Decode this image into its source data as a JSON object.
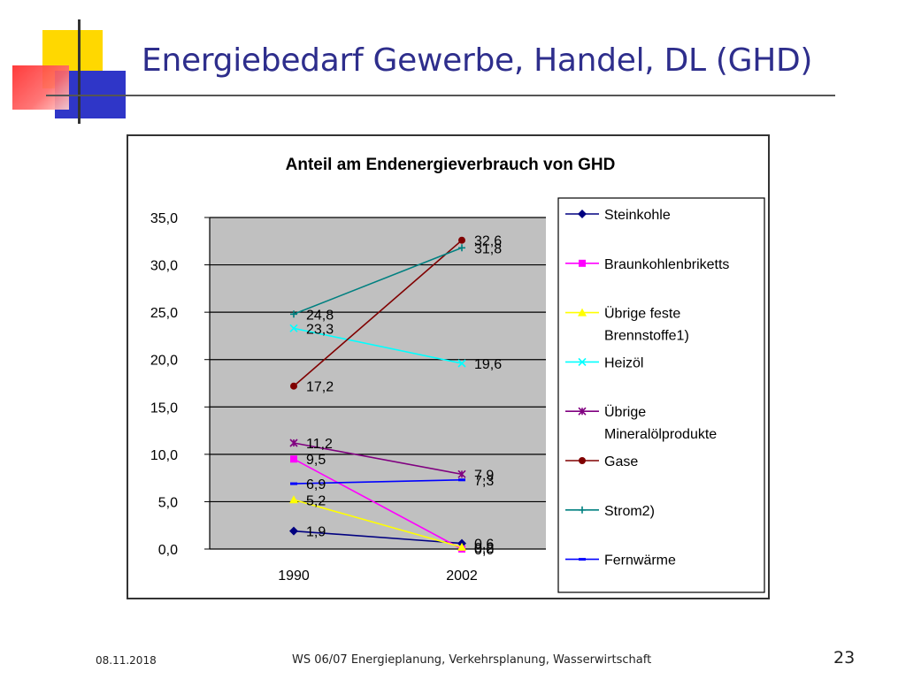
{
  "slide": {
    "title": "Energiebedarf Gewerbe, Handel, DL (GHD)",
    "footer_date": "08.11.2018",
    "footer_text": "WS 06/07 Energieplanung, Verkehrsplanung, Wasserwirtschaft",
    "page_number": "23"
  },
  "chart_data": {
    "type": "line",
    "title": "Anteil am Endenergieverbrauch von GHD",
    "xlabel": "",
    "ylabel": "",
    "categories": [
      "1990",
      "2002"
    ],
    "ylim": [
      0,
      35
    ],
    "yticks": [
      0,
      5,
      10,
      15,
      20,
      25,
      30,
      35
    ],
    "ytick_labels": [
      "0,0",
      "5,0",
      "10,0",
      "15,0",
      "20,0",
      "25,0",
      "30,0",
      "35,0"
    ],
    "grid": true,
    "legend_position": "right",
    "plot_background": "#c0c0c0",
    "series": [
      {
        "name": "Steinkohle",
        "values": [
          1.9,
          0.6
        ],
        "labels": [
          "1,9",
          "0,6"
        ],
        "color": "#000080",
        "marker": "diamond"
      },
      {
        "name": "Braunkohlenbriketts",
        "values": [
          9.5,
          0.0
        ],
        "labels": [
          "9,5",
          "0,0"
        ],
        "color": "#ff00ff",
        "marker": "square"
      },
      {
        "name": "Übrige feste Brennstoffe1)",
        "values": [
          5.2,
          0.2
        ],
        "labels": [
          "5,2",
          "0,2"
        ],
        "color": "#ffff00",
        "marker": "triangle"
      },
      {
        "name": "Heizöl",
        "values": [
          23.3,
          19.6
        ],
        "labels": [
          "23,3",
          "19,6"
        ],
        "color": "#00ffff",
        "marker": "x"
      },
      {
        "name": "Übrige Mineralölprodukte",
        "values": [
          11.2,
          7.9
        ],
        "labels": [
          "11,2",
          "7,9"
        ],
        "color": "#800080",
        "marker": "star"
      },
      {
        "name": "Gase",
        "values": [
          17.2,
          32.6
        ],
        "labels": [
          "17,2",
          "32,6"
        ],
        "color": "#800000",
        "marker": "circle"
      },
      {
        "name": "Strom2)",
        "values": [
          24.8,
          31.8
        ],
        "labels": [
          "24,8",
          "31,8"
        ],
        "color": "#008080",
        "marker": "plus"
      },
      {
        "name": "Fernwärme",
        "values": [
          6.9,
          7.3
        ],
        "labels": [
          "6,9",
          "7,3"
        ],
        "color": "#0000ff",
        "marker": "dash"
      }
    ]
  }
}
